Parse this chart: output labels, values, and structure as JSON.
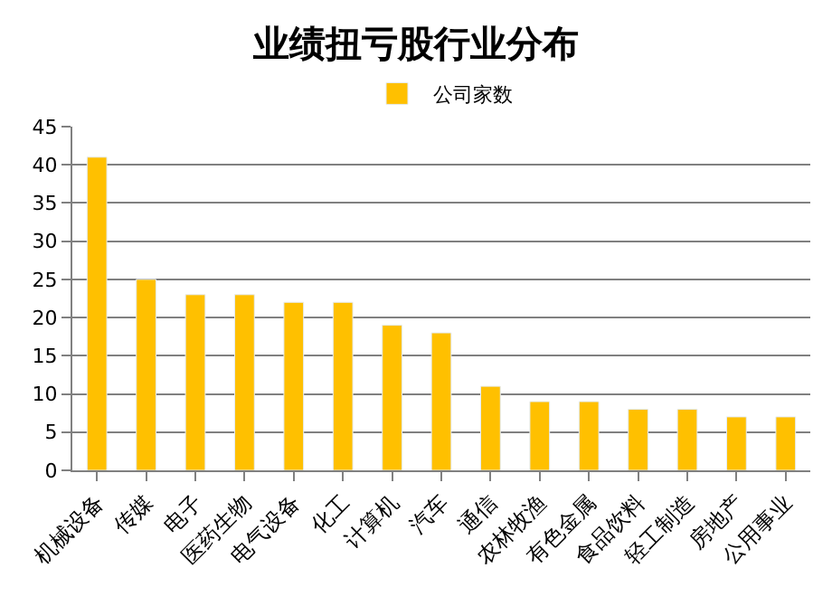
{
  "chart_data": {
    "type": "bar",
    "title": "业绩扭亏股行业分布",
    "categories": [
      "机械设备",
      "传媒",
      "电子",
      "医药生物",
      "电气设备",
      "化工",
      "计算机",
      "汽车",
      "通信",
      "农林牧渔",
      "有色金属",
      "食品饮料",
      "轻工制造",
      "房地产",
      "公用事业"
    ],
    "series": [
      {
        "name": "公司家数",
        "color": "#ffc000",
        "values": [
          41,
          25,
          23,
          23,
          22,
          22,
          19,
          18,
          11,
          9,
          9,
          8,
          8,
          7,
          7
        ]
      }
    ],
    "ylim": [
      0,
      45
    ],
    "yticks": [
      0,
      5,
      10,
      15,
      20,
      25,
      30,
      35,
      40,
      45
    ],
    "grid": "y",
    "legend": "top"
  }
}
